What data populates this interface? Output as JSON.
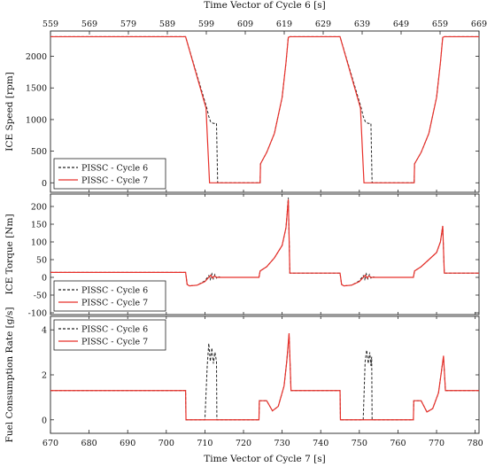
{
  "chart_data": {
    "type": "line",
    "top_axis": {
      "label": "Time Vector of Cycle 6 [s]",
      "ticks": [
        559,
        569,
        579,
        589,
        599,
        609,
        619,
        629,
        639,
        649,
        659,
        669
      ],
      "xlim": [
        559,
        669
      ]
    },
    "bottom_axis": {
      "label": "Time Vector of Cycle 7 [s]",
      "ticks": [
        670,
        680,
        690,
        700,
        710,
        720,
        730,
        740,
        750,
        760,
        770,
        780
      ],
      "xlim": [
        670,
        781
      ]
    },
    "panels": [
      {
        "ylabel": "ICE Speed [rpm]",
        "ylim": [
          -150,
          2400
        ],
        "yticks": [
          0,
          500,
          1000,
          1500,
          2000
        ],
        "legend_position": "bottom-left",
        "series": [
          {
            "name": "PISSC - Cycle 6",
            "color": "#222222",
            "dash": true,
            "x": [
              670,
              705,
              710.5,
              711,
              711.5,
              712.2,
              713,
              713.3,
              723,
              724.3,
              724.4,
              726,
              728,
              730,
              731,
              731.6,
              732,
              745,
              750.5,
              751,
              751.6,
              752.3,
              753,
              753.3,
              763,
              764.2,
              764.3,
              766,
              768,
              770,
              771,
              771.6,
              772,
              781
            ],
            "y": [
              2310,
              2310,
              1180,
              1050,
              960,
              940,
              940,
              0,
              0,
              0,
              300,
              480,
              780,
              1350,
              1900,
              2300,
              2310,
              2310,
              1180,
              1050,
              960,
              940,
              940,
              0,
              0,
              0,
              300,
              480,
              780,
              1350,
              1900,
              2300,
              2310,
              2310
            ]
          },
          {
            "name": "PISSC - Cycle 7",
            "color": "#e8302a",
            "dash": false,
            "x": [
              670,
              705,
              710.3,
              710.5,
              711.2,
              723,
              724.3,
              724.4,
              726,
              728,
              730,
              731,
              731.6,
              732,
              745,
              750.3,
              750.5,
              751.2,
              763,
              764.2,
              764.3,
              766,
              768,
              770,
              771,
              771.6,
              772,
              781
            ],
            "y": [
              2310,
              2310,
              1180,
              900,
              0,
              0,
              0,
              300,
              480,
              780,
              1350,
              1900,
              2300,
              2310,
              2310,
              1180,
              900,
              0,
              0,
              0,
              300,
              480,
              780,
              1350,
              1900,
              2300,
              2310,
              2310
            ]
          }
        ]
      },
      {
        "ylabel": "ICE Torque [Nm]",
        "ylim": [
          -105,
          235
        ],
        "yticks": [
          -100,
          -50,
          0,
          50,
          100,
          150,
          200
        ],
        "legend_position": "bottom-left",
        "series": [
          {
            "name": "PISSC - Cycle 6",
            "color": "#222222",
            "dash": true,
            "x": [
              670,
              705,
              705.4,
              706,
              708,
              710,
              711,
              711.4,
              711.8,
              712.2,
              712.6,
              713,
              713.5,
              714,
              724,
              724.3,
              726,
              728,
              730,
              731,
              731.6,
              732,
              745,
              745.4,
              746,
              748,
              750,
              751,
              751.4,
              751.8,
              752.2,
              752.6,
              753,
              753.5,
              754,
              764,
              764.3,
              766,
              768,
              770,
              771,
              771.6,
              772,
              781
            ],
            "y": [
              14,
              14,
              -20,
              -24,
              -22,
              -10,
              5,
              -6,
              10,
              -4,
              8,
              -2,
              2,
              0,
              0,
              18,
              30,
              55,
              90,
              140,
              225,
              12,
              12,
              -20,
              -24,
              -22,
              -10,
              5,
              -6,
              10,
              -4,
              8,
              -2,
              2,
              0,
              0,
              18,
              30,
              50,
              70,
              100,
              145,
              12,
              12
            ]
          },
          {
            "name": "PISSC - Cycle 7",
            "color": "#e8302a",
            "dash": false,
            "x": [
              670,
              705,
              705.4,
              706,
              708,
              710,
              711,
              711.5,
              712,
              712.5,
              713,
              714,
              724,
              724.3,
              726,
              728,
              730,
              731,
              731.6,
              732,
              745,
              745.4,
              746,
              748,
              750,
              751,
              751.5,
              752,
              752.5,
              753,
              754,
              764,
              764.3,
              766,
              768,
              770,
              771,
              771.6,
              772,
              781
            ],
            "y": [
              14,
              14,
              -20,
              -24,
              -22,
              -12,
              0,
              6,
              -2,
              4,
              0,
              0,
              0,
              18,
              30,
              55,
              90,
              140,
              220,
              12,
              12,
              -20,
              -24,
              -22,
              -12,
              0,
              6,
              -2,
              4,
              0,
              0,
              0,
              18,
              30,
              50,
              70,
              100,
              145,
              12,
              12
            ]
          }
        ]
      },
      {
        "ylabel": "Fuel Consumption Rate [g/s]",
        "ylim": [
          -0.6,
          4.6
        ],
        "yticks": [
          0,
          2,
          4
        ],
        "legend_position": "top-left",
        "series": [
          {
            "name": "PISSC - Cycle 6",
            "color": "#222222",
            "dash": true,
            "x": [
              670,
              705,
              705.1,
              710,
              710.6,
              711,
              711.4,
              711.8,
              712.2,
              712.6,
              713,
              713.1,
              724,
              724.1,
              726,
              727.5,
              729,
              730.5,
              731.2,
              731.8,
              732.3,
              745,
              745.1,
              751,
              751.5,
              751.9,
              752.3,
              752.7,
              753,
              753.2,
              753.3,
              764,
              764.1,
              766,
              767.5,
              769,
              770.5,
              771.3,
              771.8,
              772.3,
              781
            ],
            "y": [
              1.3,
              1.3,
              0,
              0,
              2.4,
              3.4,
              2.6,
              3.2,
              2.5,
              3.0,
              2.6,
              0,
              0,
              0.85,
              0.85,
              0.4,
              0.6,
              1.5,
              2.6,
              3.8,
              1.3,
              1.3,
              0,
              0,
              2.6,
              3.1,
              2.5,
              3.0,
              2.4,
              2.8,
              0,
              0,
              0.85,
              0.85,
              0.35,
              0.5,
              1.2,
              2.2,
              2.8,
              1.3,
              1.3
            ]
          },
          {
            "name": "PISSC - Cycle 7",
            "color": "#e8302a",
            "dash": false,
            "x": [
              670,
              705,
              705.1,
              724,
              724.1,
              726,
              727.5,
              729,
              730.5,
              731.2,
              731.8,
              732.3,
              745,
              745.1,
              764,
              764.1,
              766,
              767.5,
              769,
              770.5,
              771.3,
              771.8,
              772.3,
              781
            ],
            "y": [
              1.3,
              1.3,
              0,
              0,
              0.85,
              0.85,
              0.4,
              0.6,
              1.5,
              2.6,
              3.85,
              1.3,
              1.3,
              0,
              0,
              0.85,
              0.85,
              0.35,
              0.5,
              1.2,
              2.2,
              2.85,
              1.3,
              1.3
            ]
          }
        ]
      }
    ]
  }
}
